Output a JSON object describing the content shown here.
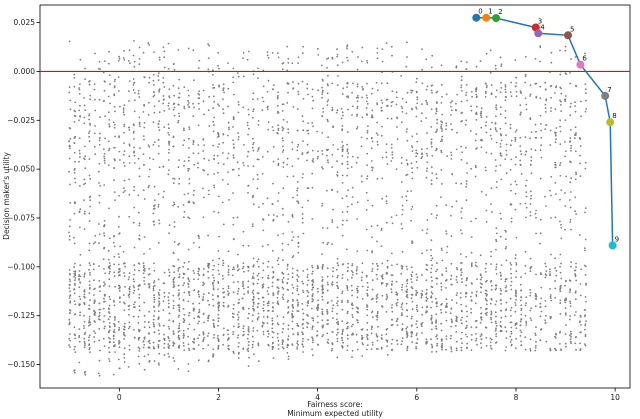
{
  "chart_data": {
    "type": "scatter",
    "title": "",
    "xlabel_line1": "Fairness score:",
    "xlabel_line2": "Minimum expected utility",
    "ylabel": "Decision maker's utility",
    "xlim": [
      -1.6,
      10.3
    ],
    "ylim": [
      -0.162,
      0.034
    ],
    "xticks": [
      0,
      2,
      4,
      6,
      8,
      10
    ],
    "xtick_labels": [
      "0",
      "2",
      "4",
      "6",
      "8",
      "10"
    ],
    "yticks": [
      0.025,
      0.0,
      -0.025,
      -0.05,
      -0.075,
      -0.1,
      -0.125,
      -0.15
    ],
    "ytick_labels": [
      "0.025",
      "0.000",
      "−0.025",
      "−0.050",
      "−0.075",
      "−0.100",
      "−0.125",
      "−0.150"
    ],
    "grid": false,
    "reference_line": {
      "y": 0.0,
      "color": "#ff0000"
    },
    "background_points_color": "#7f7f7f",
    "background_points_note": "dense grey cloud of candidate policies; x roughly -1 to 10, y roughly -0.155 to 0.02",
    "frontier_line_color": "#1f77b4",
    "frontier": [
      {
        "label": "0",
        "x": 7.2,
        "y": 0.0275,
        "color": "#1f77b4"
      },
      {
        "label": "1",
        "x": 7.4,
        "y": 0.0275,
        "color": "#ff7f0e"
      },
      {
        "label": "2",
        "x": 7.6,
        "y": 0.0273,
        "color": "#2ca02c"
      },
      {
        "label": "3",
        "x": 8.4,
        "y": 0.0225,
        "color": "#d62728"
      },
      {
        "label": "4",
        "x": 8.45,
        "y": 0.0195,
        "color": "#9467bd"
      },
      {
        "label": "5",
        "x": 9.05,
        "y": 0.0185,
        "color": "#8c564b"
      },
      {
        "label": "6",
        "x": 9.3,
        "y": 0.0035,
        "color": "#e377c2"
      },
      {
        "label": "7",
        "x": 9.8,
        "y": -0.0125,
        "color": "#7f7f7f"
      },
      {
        "label": "8",
        "x": 9.9,
        "y": -0.026,
        "color": "#bcbd22"
      },
      {
        "label": "9",
        "x": 9.95,
        "y": -0.089,
        "color": "#17becf"
      }
    ]
  }
}
